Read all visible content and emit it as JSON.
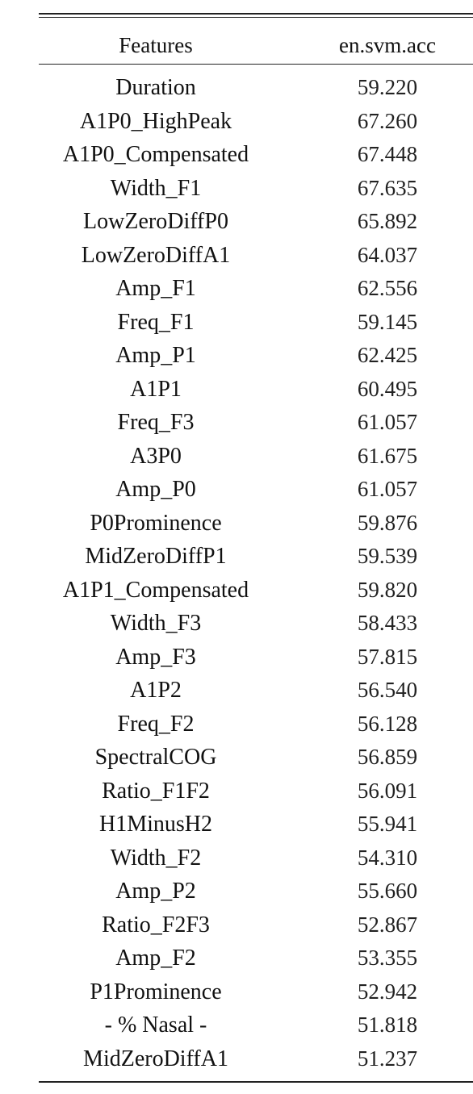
{
  "table": {
    "headers": {
      "feature": "Features",
      "value": "en.svm.acc"
    },
    "rows": [
      {
        "feature": "Duration",
        "value": "59.220"
      },
      {
        "feature": "A1P0_HighPeak",
        "value": "67.260"
      },
      {
        "feature": "A1P0_Compensated",
        "value": "67.448"
      },
      {
        "feature": "Width_F1",
        "value": "67.635"
      },
      {
        "feature": "LowZeroDiffP0",
        "value": "65.892"
      },
      {
        "feature": "LowZeroDiffA1",
        "value": "64.037"
      },
      {
        "feature": "Amp_F1",
        "value": "62.556"
      },
      {
        "feature": "Freq_F1",
        "value": "59.145"
      },
      {
        "feature": "Amp_P1",
        "value": "62.425"
      },
      {
        "feature": "A1P1",
        "value": "60.495"
      },
      {
        "feature": "Freq_F3",
        "value": "61.057"
      },
      {
        "feature": "A3P0",
        "value": "61.675"
      },
      {
        "feature": "Amp_P0",
        "value": "61.057"
      },
      {
        "feature": "P0Prominence",
        "value": "59.876"
      },
      {
        "feature": "MidZeroDiffP1",
        "value": "59.539"
      },
      {
        "feature": "A1P1_Compensated",
        "value": "59.820"
      },
      {
        "feature": "Width_F3",
        "value": "58.433"
      },
      {
        "feature": "Amp_F3",
        "value": "57.815"
      },
      {
        "feature": "A1P2",
        "value": "56.540"
      },
      {
        "feature": "Freq_F2",
        "value": "56.128"
      },
      {
        "feature": "SpectralCOG",
        "value": "56.859"
      },
      {
        "feature": "Ratio_F1F2",
        "value": "56.091"
      },
      {
        "feature": "H1MinusH2",
        "value": "55.941"
      },
      {
        "feature": "Width_F2",
        "value": "54.310"
      },
      {
        "feature": "Amp_P2",
        "value": "55.660"
      },
      {
        "feature": "Ratio_F2F3",
        "value": "52.867"
      },
      {
        "feature": "Amp_F2",
        "value": "53.355"
      },
      {
        "feature": "P1Prominence",
        "value": "52.942"
      },
      {
        "feature": "- % Nasal -",
        "value": "51.818"
      },
      {
        "feature": "MidZeroDiffA1",
        "value": "51.237"
      }
    ]
  }
}
